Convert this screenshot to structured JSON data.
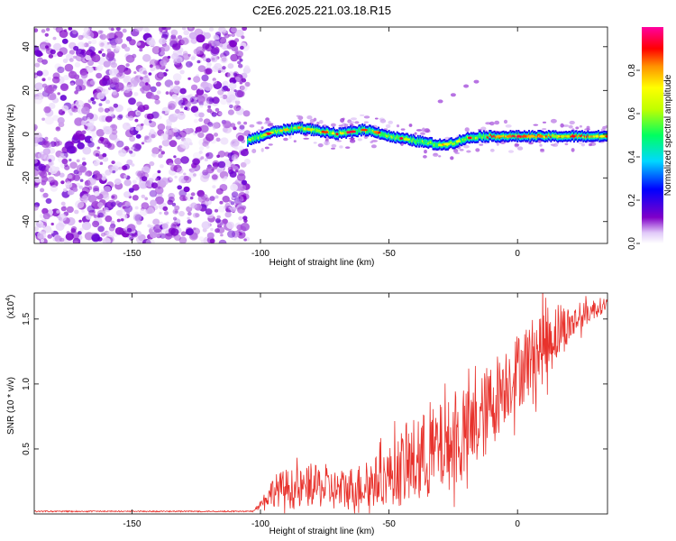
{
  "title": "C2E6.2025.221.03.18.R15",
  "chart_data": [
    {
      "type": "heatmap",
      "xlabel": "Height of straight line (km)",
      "ylabel": "Frequency (Hz)",
      "xlim": [
        -188,
        35
      ],
      "ylim": [
        -50,
        49
      ],
      "xticks": [
        -150,
        -100,
        -50,
        0
      ],
      "yticks": [
        -40,
        -20,
        0,
        20,
        40
      ],
      "colorbar": {
        "label": "Normalized spectral amplitude",
        "range": [
          0,
          1
        ],
        "ticks": [
          "0.0",
          "0.2",
          "0.4",
          "0.6",
          "0.8"
        ]
      },
      "regions": [
        {
          "x_range": [
            -188,
            -105
          ],
          "pattern": "random noise",
          "amplitude_range": [
            0.02,
            0.15
          ]
        },
        {
          "x_range": [
            -105,
            35
          ],
          "pattern": "signal band",
          "band_width_hz": 6,
          "amplitude_range": [
            0.1,
            0.95
          ]
        }
      ],
      "signal_ridge": {
        "x": [
          -105,
          -100,
          -95,
          -90,
          -85,
          -80,
          -75,
          -70,
          -65,
          -60,
          -55,
          -50,
          -45,
          -40,
          -35,
          -30,
          -25,
          -20,
          -15,
          -10,
          -5,
          0,
          5,
          10,
          15,
          20,
          25,
          30,
          35
        ],
        "y": [
          -3,
          -1,
          1,
          2,
          3,
          2,
          1,
          0,
          1,
          2,
          1,
          -1,
          -2,
          -3,
          -4,
          -5,
          -4,
          -2,
          -1,
          -1,
          -1,
          -1,
          -1,
          -1,
          -1,
          -1,
          -1,
          -1,
          -1
        ]
      },
      "faint_trace": {
        "x": [
          -30,
          -25,
          -20,
          -16
        ],
        "y": [
          15,
          18,
          22,
          24
        ]
      },
      "colors": [
        "#ffffff",
        "#8000c8",
        "#0000ff",
        "#00d8ff",
        "#00ff60",
        "#ffff00",
        "#ff9000",
        "#ff0000",
        "#ff00a0"
      ]
    },
    {
      "type": "line",
      "xlabel": "Height of straight line (km)",
      "ylabel": "SNR (10 * v/v)",
      "y_multiplier": "(x10",
      "y_multiplier_exp": "4",
      "y_multiplier_close": ")",
      "xlim": [
        -188,
        35
      ],
      "ylim": [
        0,
        1.7
      ],
      "xticks": [
        -150,
        -100,
        -50,
        0
      ],
      "yticks": [
        0.5,
        1.0,
        1.5
      ],
      "ytick_labels": [
        "0.5",
        "1.0",
        "1.5"
      ],
      "color": "#e8322c",
      "series": [
        {
          "x": [
            -188,
            -180,
            -170,
            -160,
            -150,
            -140,
            -130,
            -120,
            -110,
            -103,
            -100,
            -95,
            -90,
            -85,
            -80,
            -75,
            -70,
            -65,
            -60,
            -55,
            -50,
            -45,
            -40,
            -35,
            -30,
            -25,
            -20,
            -15,
            -10,
            -5,
            0,
            5,
            10,
            15,
            20,
            25,
            30,
            35
          ],
          "y": [
            0.02,
            0.02,
            0.02,
            0.02,
            0.02,
            0.02,
            0.02,
            0.02,
            0.02,
            0.02,
            0.08,
            0.18,
            0.2,
            0.18,
            0.22,
            0.2,
            0.18,
            0.2,
            0.22,
            0.25,
            0.3,
            0.35,
            0.4,
            0.45,
            0.5,
            0.55,
            0.6,
            0.7,
            0.85,
            1.0,
            1.1,
            1.2,
            1.3,
            1.4,
            1.45,
            1.52,
            1.58,
            1.62
          ],
          "spread": [
            0.0,
            0.0,
            0.0,
            0.0,
            0.0,
            0.0,
            0.0,
            0.0,
            0.0,
            0.0,
            0.03,
            0.12,
            0.15,
            0.16,
            0.16,
            0.16,
            0.16,
            0.17,
            0.18,
            0.2,
            0.22,
            0.3,
            0.35,
            0.35,
            0.35,
            0.35,
            0.35,
            0.35,
            0.35,
            0.3,
            0.3,
            0.3,
            0.3,
            0.25,
            0.15,
            0.1,
            0.08,
            0.05
          ]
        }
      ]
    }
  ]
}
